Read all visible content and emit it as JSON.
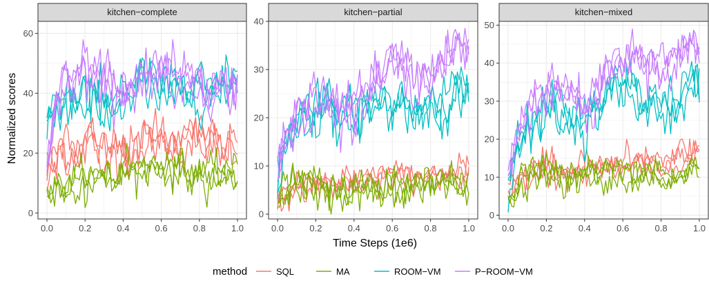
{
  "shared": {
    "ylabel": "Normalized scores",
    "xlabel": "Time Steps (1e6)",
    "xticks": [
      "0.0",
      "0.2",
      "0.4",
      "0.6",
      "0.8",
      "1.0"
    ],
    "legend_title": "method",
    "legend_position": "bottom",
    "series_colors": {
      "SQL": "#F8766D",
      "MA": "#7CAE00",
      "ROOM-VM": "#00BFC4",
      "P-ROOM-VM": "#C77CFF"
    },
    "series_labels": {
      "SQL": "SQL",
      "MA": "MA",
      "ROOM-VM": "ROOM−VM",
      "P-ROOM-VM": "P−ROOM−VM"
    }
  },
  "chart_data": [
    {
      "type": "line",
      "title": "kitchen−complete",
      "xlim": [
        0,
        1.0
      ],
      "ylim": [
        -2,
        64
      ],
      "yticks": [
        0,
        20,
        40,
        60
      ],
      "grid": true,
      "x": [
        0.0,
        0.05,
        0.1,
        0.15,
        0.2,
        0.25,
        0.3,
        0.35,
        0.4,
        0.45,
        0.5,
        0.55,
        0.6,
        0.65,
        0.7,
        0.75,
        0.8,
        0.85,
        0.9,
        0.95,
        1.0
      ],
      "series": [
        {
          "name": "SQL",
          "values": [
            12,
            20,
            22,
            21,
            23,
            22,
            20,
            21,
            22,
            20,
            23,
            24,
            25,
            24,
            22,
            24,
            25,
            24,
            23,
            24,
            21
          ],
          "runs": 3,
          "noise": 4
        },
        {
          "name": "MA",
          "values": [
            8,
            8,
            10,
            11,
            12,
            12,
            11,
            12,
            13,
            14,
            15,
            16,
            16,
            15,
            14,
            14,
            14,
            13,
            12,
            13,
            13
          ],
          "runs": 3,
          "noise": 3
        },
        {
          "name": "ROOM-VM",
          "values": [
            30,
            37,
            38,
            36,
            37,
            38,
            37,
            36,
            38,
            40,
            45,
            44,
            41,
            40,
            41,
            40,
            42,
            41,
            42,
            43,
            43
          ],
          "runs": 3,
          "noise": 4
        },
        {
          "name": "P-ROOM-VM",
          "values": [
            18,
            40,
            44,
            46,
            48,
            46,
            45,
            44,
            42,
            43,
            45,
            46,
            46,
            45,
            44,
            43,
            42,
            42,
            41,
            42,
            42
          ],
          "runs": 3,
          "noise": 4
        }
      ]
    },
    {
      "type": "line",
      "title": "kitchen−partial",
      "xlim": [
        0,
        1.0
      ],
      "ylim": [
        -1,
        40
      ],
      "yticks": [
        0,
        10,
        20,
        30,
        40
      ],
      "grid": true,
      "x": [
        0.0,
        0.05,
        0.1,
        0.15,
        0.2,
        0.25,
        0.3,
        0.35,
        0.4,
        0.45,
        0.5,
        0.55,
        0.6,
        0.65,
        0.7,
        0.75,
        0.8,
        0.85,
        0.9,
        0.95,
        1.0
      ],
      "series": [
        {
          "name": "SQL",
          "values": [
            3,
            5,
            6,
            6,
            7,
            7,
            6,
            7,
            7,
            7,
            7,
            8,
            8,
            8,
            7,
            8,
            8,
            8,
            9,
            9,
            9
          ],
          "runs": 3,
          "noise": 1.5
        },
        {
          "name": "MA",
          "values": [
            2,
            5,
            7,
            6,
            5,
            5,
            4,
            4,
            5,
            5,
            5,
            4,
            5,
            5,
            6,
            6,
            7,
            6,
            6,
            6,
            6
          ],
          "runs": 3,
          "noise": 2
        },
        {
          "name": "ROOM-VM",
          "values": [
            7,
            15,
            18,
            20,
            21,
            22,
            21,
            20,
            21,
            22,
            22,
            23,
            23,
            24,
            22,
            22,
            24,
            24,
            25,
            26,
            26
          ],
          "runs": 3,
          "noise": 2.5
        },
        {
          "name": "P-ROOM-VM",
          "values": [
            8,
            16,
            20,
            23,
            25,
            24,
            23,
            22,
            22,
            25,
            27,
            28,
            31,
            31,
            29,
            29,
            30,
            31,
            33,
            34,
            33
          ],
          "runs": 3,
          "noise": 2.5
        }
      ]
    },
    {
      "type": "line",
      "title": "kitchen−mixed",
      "xlim": [
        0,
        1.0
      ],
      "ylim": [
        -1,
        51
      ],
      "yticks": [
        0,
        10,
        20,
        30,
        40,
        50
      ],
      "grid": true,
      "x": [
        0.0,
        0.05,
        0.1,
        0.15,
        0.2,
        0.25,
        0.3,
        0.35,
        0.4,
        0.45,
        0.5,
        0.55,
        0.6,
        0.65,
        0.7,
        0.75,
        0.8,
        0.85,
        0.9,
        0.95,
        1.0
      ],
      "series": [
        {
          "name": "SQL",
          "values": [
            5,
            10,
            11,
            12,
            12,
            12,
            11,
            11,
            12,
            12,
            12,
            13,
            13,
            14,
            14,
            14,
            14,
            14,
            15,
            15,
            15
          ],
          "runs": 3,
          "noise": 2
        },
        {
          "name": "MA",
          "values": [
            3,
            8,
            11,
            12,
            12,
            11,
            10,
            10,
            10,
            11,
            10,
            10,
            10,
            10,
            11,
            11,
            10,
            10,
            11,
            12,
            12
          ],
          "runs": 3,
          "noise": 2
        },
        {
          "name": "ROOM-VM",
          "values": [
            8,
            18,
            22,
            25,
            28,
            28,
            26,
            24,
            25,
            26,
            30,
            33,
            34,
            33,
            30,
            29,
            30,
            29,
            31,
            34,
            34
          ],
          "runs": 3,
          "noise": 3
        },
        {
          "name": "P-ROOM-VM",
          "values": [
            10,
            22,
            27,
            30,
            34,
            34,
            33,
            31,
            29,
            31,
            37,
            40,
            43,
            43,
            40,
            40,
            41,
            41,
            43,
            45,
            44
          ],
          "runs": 3,
          "noise": 3
        }
      ]
    }
  ]
}
